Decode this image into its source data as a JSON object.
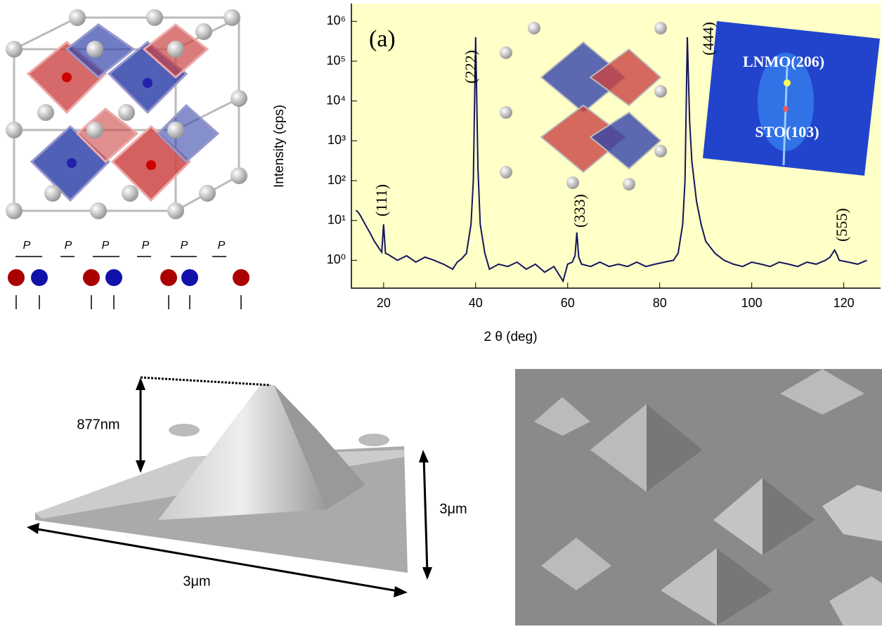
{
  "chart_data": {
    "type": "line",
    "panel_label": "(a)",
    "x_label": "2 θ (deg)",
    "y_label": "Intensity (cps)",
    "log_y": true,
    "x": [
      14,
      14.5,
      15,
      16,
      17,
      18,
      19,
      19.6,
      20,
      20.4,
      21,
      23,
      25,
      27,
      29,
      31,
      33,
      35,
      36,
      37,
      38,
      39,
      39.5,
      40,
      40.5,
      41,
      42,
      43,
      45,
      47,
      49,
      51,
      53,
      55,
      57,
      59,
      60,
      61,
      61.6,
      62,
      62.4,
      63,
      65,
      67,
      69,
      71,
      73,
      75,
      77,
      79,
      81,
      83,
      84,
      85,
      85.5,
      86,
      86.5,
      87,
      88,
      89,
      90,
      92,
      94,
      96,
      98,
      100,
      102,
      104,
      106,
      108,
      110,
      112,
      114,
      116,
      117,
      118,
      118.5,
      119,
      121,
      123,
      125
    ],
    "series": [
      {
        "color": "#14145e",
        "values": [
          18,
          16,
          13,
          8,
          5,
          3,
          2,
          1.6,
          8,
          1.5,
          1.4,
          1,
          1.3,
          0.9,
          1.2,
          1,
          0.8,
          0.6,
          0.9,
          1.1,
          1.5,
          8,
          100,
          400000,
          200,
          8,
          1.5,
          0.6,
          0.8,
          0.7,
          0.9,
          0.6,
          0.8,
          0.5,
          0.7,
          0.3,
          0.8,
          0.9,
          1.3,
          5,
          1.2,
          0.8,
          0.7,
          0.9,
          0.7,
          0.8,
          0.7,
          0.9,
          0.7,
          0.8,
          0.9,
          1,
          1.5,
          8,
          100,
          400000,
          3000,
          300,
          30,
          8,
          3,
          1.5,
          1,
          0.8,
          0.7,
          0.9,
          0.8,
          0.7,
          0.9,
          0.8,
          0.7,
          0.9,
          0.8,
          1,
          1.2,
          1.8,
          1.4,
          1,
          0.9,
          0.8,
          1
        ]
      }
    ],
    "xlim": [
      13,
      128
    ],
    "ylim": [
      0.2,
      2800000
    ],
    "xticks": [
      20,
      40,
      60,
      80,
      100,
      120
    ],
    "yticks": [
      {
        "value": 1,
        "label": "10⁰"
      },
      {
        "value": 10,
        "label": "10¹"
      },
      {
        "value": 100,
        "label": "10²"
      },
      {
        "value": 1000,
        "label": "10³"
      },
      {
        "value": 10000,
        "label": "10⁴"
      },
      {
        "value": 100000,
        "label": "10⁵"
      },
      {
        "value": 1000000,
        "label": "10⁶"
      }
    ],
    "background": "#ffffc8",
    "annotations": [
      "(111)",
      "(222)",
      "(333)",
      "(444)",
      "(555)"
    ]
  },
  "inset": {
    "labels": [
      "LNMO(206)",
      "STO(103)"
    ]
  },
  "schematic": {
    "labels": [
      "P",
      "P",
      "P",
      "P",
      "P",
      "P"
    ]
  },
  "afm": {
    "height": "877nm",
    "width": "3μm",
    "depth": "3μm"
  }
}
